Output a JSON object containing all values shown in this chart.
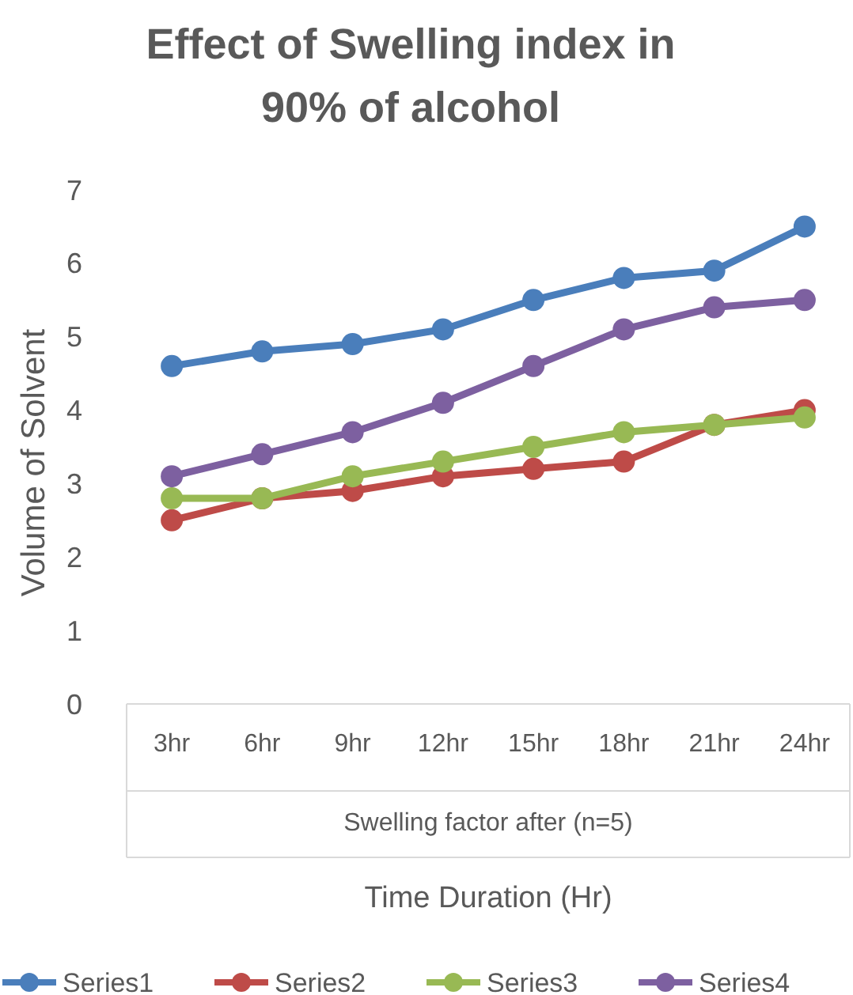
{
  "chart_data": {
    "type": "line",
    "title": "Effect of  Swelling index in 90% of alcohol",
    "xlabel": "Time Duration (Hr)",
    "ylabel": "Volume of Solvent",
    "annotations": [
      "Swelling factor after (n=5)"
    ],
    "categories": [
      "3hr",
      "6hr",
      "9hr",
      "12hr",
      "15hr",
      "18hr",
      "21hr",
      "24hr"
    ],
    "series": [
      {
        "name": "Series1",
        "color": "#4a7ebb",
        "values": [
          4.6,
          4.8,
          4.9,
          5.1,
          5.5,
          5.8,
          5.9,
          6.5
        ]
      },
      {
        "name": "Series2",
        "color": "#be4b48",
        "values": [
          2.5,
          2.8,
          2.9,
          3.1,
          3.2,
          3.3,
          3.8,
          4.0
        ]
      },
      {
        "name": "Series3",
        "color": "#98b954",
        "values": [
          2.8,
          2.8,
          3.1,
          3.3,
          3.5,
          3.7,
          3.8,
          3.9
        ]
      },
      {
        "name": "Series4",
        "color": "#7d60a0",
        "values": [
          3.1,
          3.4,
          3.7,
          4.1,
          4.6,
          5.1,
          5.4,
          5.5
        ]
      }
    ],
    "ylim": [
      0,
      7
    ],
    "yticks": [
      0,
      1,
      2,
      3,
      4,
      5,
      6,
      7
    ],
    "grid": false,
    "legend": "bottom",
    "marker": "circle",
    "line_style": "solid"
  }
}
